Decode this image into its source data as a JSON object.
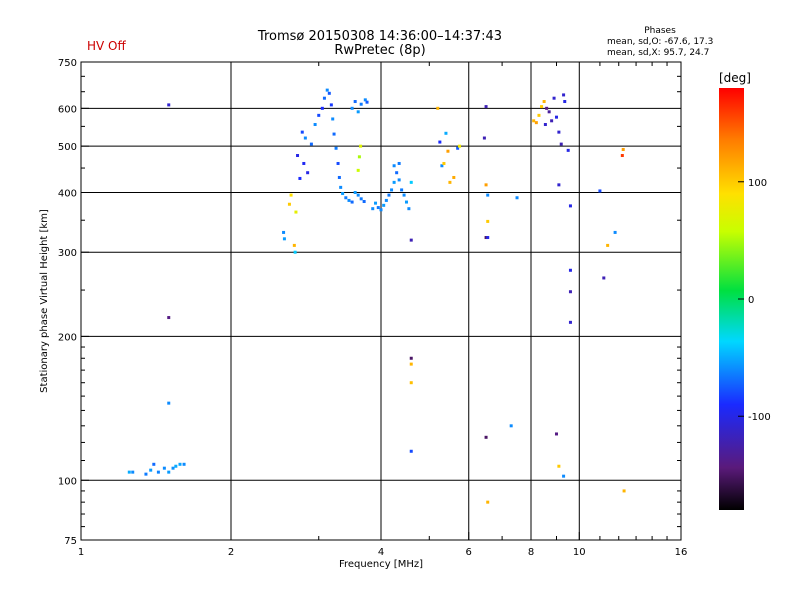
{
  "header": {
    "title_line1": "Tromsø 20150308 14:36:00–14:37:43",
    "title_line2": "RwPretec (8p)",
    "hv_status": "HV Off",
    "hv_color": "#cc0000",
    "phases_title": "Phases",
    "phases_line1": "mean, sd,O: -67.6, 17.3",
    "phases_line2": "mean, sd,X:  95.7, 24.7"
  },
  "chart_data": {
    "type": "scatter",
    "xlabel": "Frequency [MHz]",
    "ylabel": "Stationary phase Virtual Height [km]",
    "xscale": "log",
    "yscale": "log",
    "xlim": [
      1,
      16
    ],
    "ylim": [
      75,
      750
    ],
    "x_ticks": [
      {
        "value": 1,
        "label": "1"
      },
      {
        "value": 2,
        "label": "2"
      },
      {
        "value": 4,
        "label": "4"
      },
      {
        "value": 6,
        "label": "6"
      },
      {
        "value": 8,
        "label": "8"
      },
      {
        "value": 10,
        "label": "10"
      },
      {
        "value": 16,
        "label": "16"
      }
    ],
    "y_ticks": [
      {
        "value": 75,
        "label": "75"
      },
      {
        "value": 100,
        "label": "100"
      },
      {
        "value": 200,
        "label": "200"
      },
      {
        "value": 300,
        "label": "300"
      },
      {
        "value": 400,
        "label": "400"
      },
      {
        "value": 500,
        "label": "500"
      },
      {
        "value": 600,
        "label": "600"
      },
      {
        "value": 750,
        "label": "750"
      }
    ],
    "grid_x": [
      2,
      4,
      6,
      8,
      10
    ],
    "grid_y": [
      100,
      200,
      300,
      400,
      500,
      600
    ],
    "colorbar": {
      "unit": "[deg]",
      "range": [
        -180,
        180
      ],
      "ticks": [
        {
          "value": 100,
          "label": "100"
        },
        {
          "value": 0,
          "label": "0"
        },
        {
          "value": -100,
          "label": "-100"
        }
      ]
    },
    "points": [
      [
        1.25,
        104,
        -50
      ],
      [
        1.27,
        104,
        -60
      ],
      [
        1.35,
        103,
        -65
      ],
      [
        1.38,
        105,
        -55
      ],
      [
        1.4,
        108,
        -70
      ],
      [
        1.43,
        104,
        -62
      ],
      [
        1.47,
        106,
        -60
      ],
      [
        1.5,
        104,
        -55
      ],
      [
        1.53,
        106,
        -58
      ],
      [
        1.55,
        107,
        -50
      ],
      [
        1.58,
        108,
        -52
      ],
      [
        1.61,
        108,
        -60
      ],
      [
        1.5,
        610,
        -110
      ],
      [
        1.5,
        145,
        -60
      ],
      [
        1.5,
        219,
        -140
      ],
      [
        2.55,
        330,
        -60
      ],
      [
        2.56,
        320,
        -55
      ],
      [
        2.62,
        378,
        100
      ],
      [
        2.64,
        395,
        90
      ],
      [
        2.68,
        310,
        110
      ],
      [
        2.69,
        300,
        -40
      ],
      [
        2.7,
        364,
        75
      ],
      [
        2.72,
        478,
        -100
      ],
      [
        2.75,
        428,
        -90
      ],
      [
        2.78,
        535,
        -80
      ],
      [
        2.8,
        460,
        -95
      ],
      [
        2.82,
        520,
        -60
      ],
      [
        2.85,
        440,
        -100
      ],
      [
        2.9,
        505,
        -70
      ],
      [
        2.95,
        555,
        -60
      ],
      [
        3.0,
        580,
        -80
      ],
      [
        3.05,
        600,
        -90
      ],
      [
        3.08,
        630,
        -70
      ],
      [
        3.12,
        655,
        -60
      ],
      [
        3.15,
        645,
        -75
      ],
      [
        3.18,
        610,
        -85
      ],
      [
        3.2,
        570,
        -60
      ],
      [
        3.22,
        530,
        -70
      ],
      [
        3.25,
        495,
        -65
      ],
      [
        3.28,
        460,
        -80
      ],
      [
        3.3,
        430,
        -70
      ],
      [
        3.32,
        410,
        -60
      ],
      [
        3.35,
        398,
        -55
      ],
      [
        3.4,
        390,
        -65
      ],
      [
        3.45,
        385,
        -60
      ],
      [
        3.5,
        382,
        -70
      ],
      [
        3.55,
        400,
        -55
      ],
      [
        3.6,
        395,
        -60
      ],
      [
        3.65,
        388,
        -65
      ],
      [
        3.7,
        383,
        -70
      ],
      [
        3.5,
        600,
        -60
      ],
      [
        3.55,
        620,
        -70
      ],
      [
        3.6,
        590,
        -55
      ],
      [
        3.65,
        612,
        -65
      ],
      [
        3.72,
        625,
        -60
      ],
      [
        3.75,
        618,
        -75
      ],
      [
        3.6,
        445,
        60
      ],
      [
        3.62,
        475,
        50
      ],
      [
        3.64,
        500,
        70
      ],
      [
        3.85,
        370,
        -60
      ],
      [
        3.9,
        380,
        -55
      ],
      [
        3.95,
        372,
        -65
      ],
      [
        4.0,
        368,
        -60
      ],
      [
        4.05,
        376,
        -55
      ],
      [
        4.1,
        385,
        -60
      ],
      [
        4.15,
        395,
        -65
      ],
      [
        4.2,
        405,
        -60
      ],
      [
        4.25,
        420,
        -55
      ],
      [
        4.3,
        440,
        -70
      ],
      [
        4.35,
        425,
        -60
      ],
      [
        4.4,
        405,
        -65
      ],
      [
        4.45,
        395,
        -60
      ],
      [
        4.5,
        382,
        -55
      ],
      [
        4.55,
        370,
        -60
      ],
      [
        4.25,
        455,
        -60
      ],
      [
        4.35,
        460,
        -65
      ],
      [
        4.6,
        420,
        -40
      ],
      [
        4.6,
        318,
        -120
      ],
      [
        4.6,
        180,
        -150
      ],
      [
        4.6,
        175,
        110
      ],
      [
        4.6,
        160,
        105
      ],
      [
        4.6,
        115,
        -80
      ],
      [
        5.2,
        600,
        110
      ],
      [
        5.25,
        510,
        -90
      ],
      [
        5.3,
        455,
        -60
      ],
      [
        5.35,
        460,
        100
      ],
      [
        5.4,
        532,
        -50
      ],
      [
        5.45,
        488,
        120
      ],
      [
        5.5,
        420,
        110
      ],
      [
        5.6,
        430,
        115
      ],
      [
        5.7,
        495,
        -75
      ],
      [
        5.75,
        500,
        80
      ],
      [
        6.5,
        605,
        -120
      ],
      [
        6.45,
        520,
        -120
      ],
      [
        6.5,
        415,
        120
      ],
      [
        6.55,
        395,
        -60
      ],
      [
        6.55,
        348,
        100
      ],
      [
        6.5,
        322,
        -150
      ],
      [
        6.55,
        322,
        -100
      ],
      [
        6.5,
        123,
        -150
      ],
      [
        6.55,
        90,
        110
      ],
      [
        7.3,
        130,
        -60
      ],
      [
        7.5,
        390,
        -60
      ],
      [
        8.1,
        565,
        110
      ],
      [
        8.2,
        560,
        120
      ],
      [
        8.3,
        580,
        100
      ],
      [
        8.4,
        605,
        100
      ],
      [
        8.5,
        620,
        110
      ],
      [
        8.55,
        555,
        -110
      ],
      [
        8.6,
        600,
        -140
      ],
      [
        8.7,
        590,
        -130
      ],
      [
        8.8,
        565,
        -120
      ],
      [
        8.9,
        630,
        -110
      ],
      [
        9.0,
        575,
        -100
      ],
      [
        9.1,
        535,
        -110
      ],
      [
        9.2,
        505,
        -120
      ],
      [
        9.3,
        640,
        -110
      ],
      [
        9.35,
        620,
        -100
      ],
      [
        9.1,
        415,
        -110
      ],
      [
        9.0,
        125,
        -140
      ],
      [
        9.1,
        107,
        100
      ],
      [
        9.3,
        102,
        -60
      ],
      [
        9.5,
        490,
        -100
      ],
      [
        9.6,
        375,
        -100
      ],
      [
        9.6,
        275,
        -100
      ],
      [
        9.6,
        248,
        -120
      ],
      [
        9.6,
        214,
        -110
      ],
      [
        11.0,
        403,
        -80
      ],
      [
        11.2,
        265,
        -120
      ],
      [
        11.4,
        310,
        110
      ],
      [
        11.8,
        330,
        -60
      ],
      [
        12.2,
        478,
        160
      ],
      [
        12.25,
        492,
        120
      ],
      [
        12.3,
        95,
        110
      ]
    ]
  }
}
